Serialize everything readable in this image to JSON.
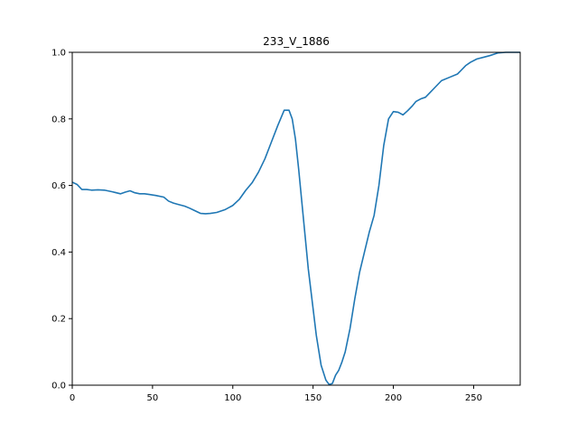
{
  "chart_data": {
    "type": "line",
    "title": "233_V_1886",
    "xlabel": "",
    "ylabel": "",
    "xlim": [
      0,
      279
    ],
    "ylim": [
      0.0,
      1.0
    ],
    "xticks": [
      0,
      50,
      100,
      150,
      200,
      250
    ],
    "yticks": [
      0.0,
      0.2,
      0.4,
      0.6,
      0.8,
      1.0
    ],
    "xtick_labels": [
      "0",
      "50",
      "100",
      "150",
      "200",
      "250"
    ],
    "ytick_labels": [
      "0.0",
      "0.2",
      "0.4",
      "0.6",
      "0.8",
      "1.0"
    ],
    "grid": false,
    "series": [
      {
        "color": "#1f77b4",
        "x": [
          0,
          3,
          6,
          9,
          12,
          16,
          20,
          25,
          30,
          33,
          36,
          39,
          42,
          45,
          48,
          52,
          57,
          60,
          63,
          66,
          70,
          73,
          76,
          80,
          83,
          86,
          90,
          95,
          100,
          104,
          108,
          112,
          116,
          120,
          124,
          128,
          132,
          135,
          137,
          139,
          141,
          143,
          145,
          147,
          150,
          152,
          155,
          158,
          160,
          162,
          164,
          166,
          168,
          170,
          173,
          176,
          179,
          182,
          185,
          188,
          191,
          194,
          197,
          200,
          203,
          206,
          209,
          212,
          214,
          217,
          220,
          223,
          226,
          230,
          235,
          240,
          245,
          248,
          252,
          256,
          260,
          265,
          270,
          275,
          279
        ],
        "y": [
          0.61,
          0.603,
          0.588,
          0.588,
          0.586,
          0.587,
          0.586,
          0.581,
          0.575,
          0.58,
          0.584,
          0.578,
          0.575,
          0.575,
          0.573,
          0.57,
          0.565,
          0.553,
          0.547,
          0.543,
          0.538,
          0.532,
          0.525,
          0.516,
          0.515,
          0.516,
          0.519,
          0.527,
          0.54,
          0.558,
          0.585,
          0.608,
          0.64,
          0.68,
          0.73,
          0.78,
          0.826,
          0.826,
          0.8,
          0.74,
          0.65,
          0.55,
          0.45,
          0.35,
          0.23,
          0.15,
          0.06,
          0.015,
          0.002,
          0.005,
          0.03,
          0.045,
          0.07,
          0.1,
          0.17,
          0.26,
          0.34,
          0.4,
          0.46,
          0.51,
          0.6,
          0.72,
          0.8,
          0.822,
          0.82,
          0.812,
          0.825,
          0.84,
          0.852,
          0.86,
          0.865,
          0.88,
          0.895,
          0.915,
          0.925,
          0.935,
          0.96,
          0.97,
          0.98,
          0.985,
          0.99,
          0.998,
          1.0,
          1.0,
          1.0
        ]
      }
    ]
  }
}
